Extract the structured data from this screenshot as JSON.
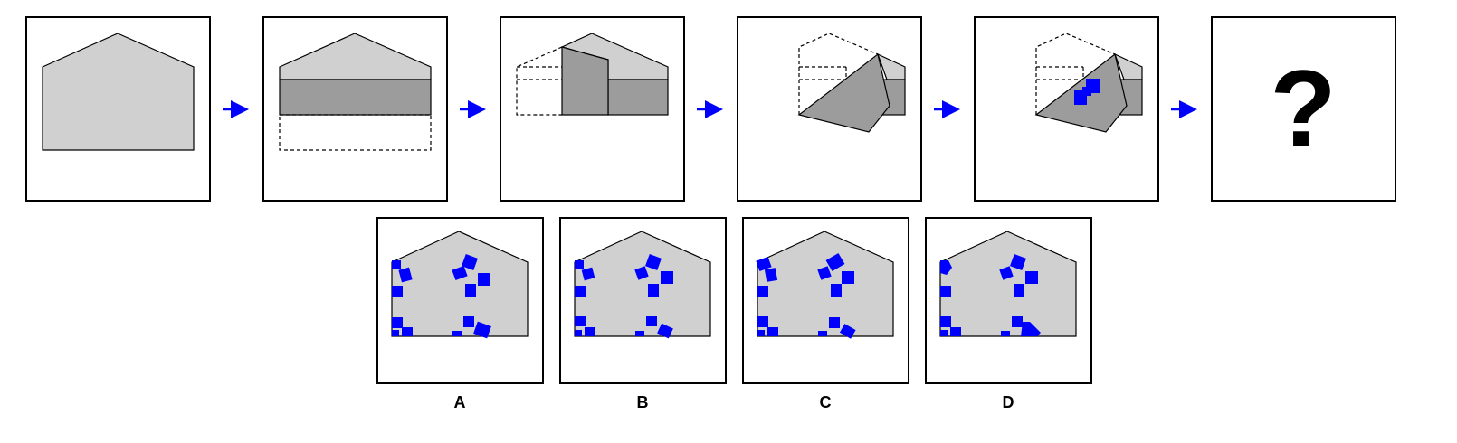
{
  "puzzle": {
    "question_mark": "?",
    "options": [
      {
        "label": "A"
      },
      {
        "label": "B"
      },
      {
        "label": "C"
      },
      {
        "label": "D"
      }
    ]
  },
  "colors": {
    "paper": "#d0d0d0",
    "folded": "#9c9c9c",
    "hole": "#0000ff",
    "arrow": "#0000ff",
    "outline": "#000000"
  },
  "icons": [
    "arrow-right-icon"
  ]
}
